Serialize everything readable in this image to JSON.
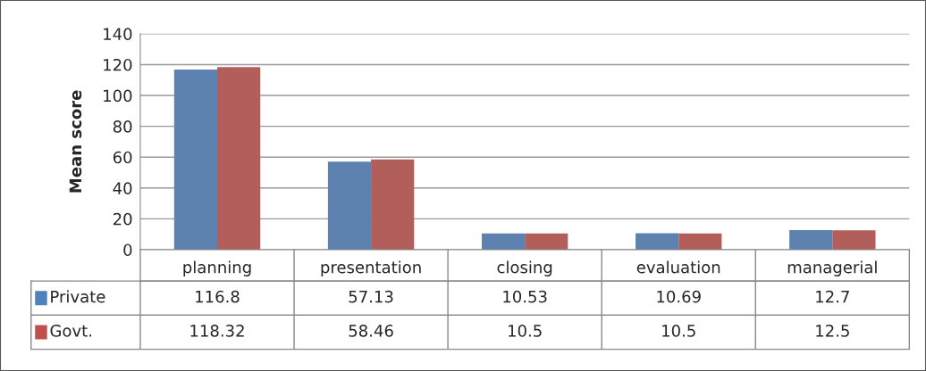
{
  "chart_data": {
    "type": "bar",
    "ylabel": "Mean score",
    "categories": [
      "planning",
      "presentation",
      "closing",
      "evaluation",
      "managerial"
    ],
    "series": [
      {
        "name": "Private",
        "color": "#4f81bd",
        "values": [
          116.8,
          57.13,
          10.53,
          10.69,
          12.7
        ]
      },
      {
        "name": "Govt.",
        "color": "#c0504d",
        "values": [
          118.32,
          58.46,
          10.5,
          10.5,
          12.5
        ]
      }
    ],
    "ylim": [
      0,
      140
    ],
    "yticks": [
      0,
      20,
      40,
      60,
      80,
      100,
      120,
      140
    ],
    "grid": "y",
    "legend": "bottom",
    "data_labels": true
  }
}
